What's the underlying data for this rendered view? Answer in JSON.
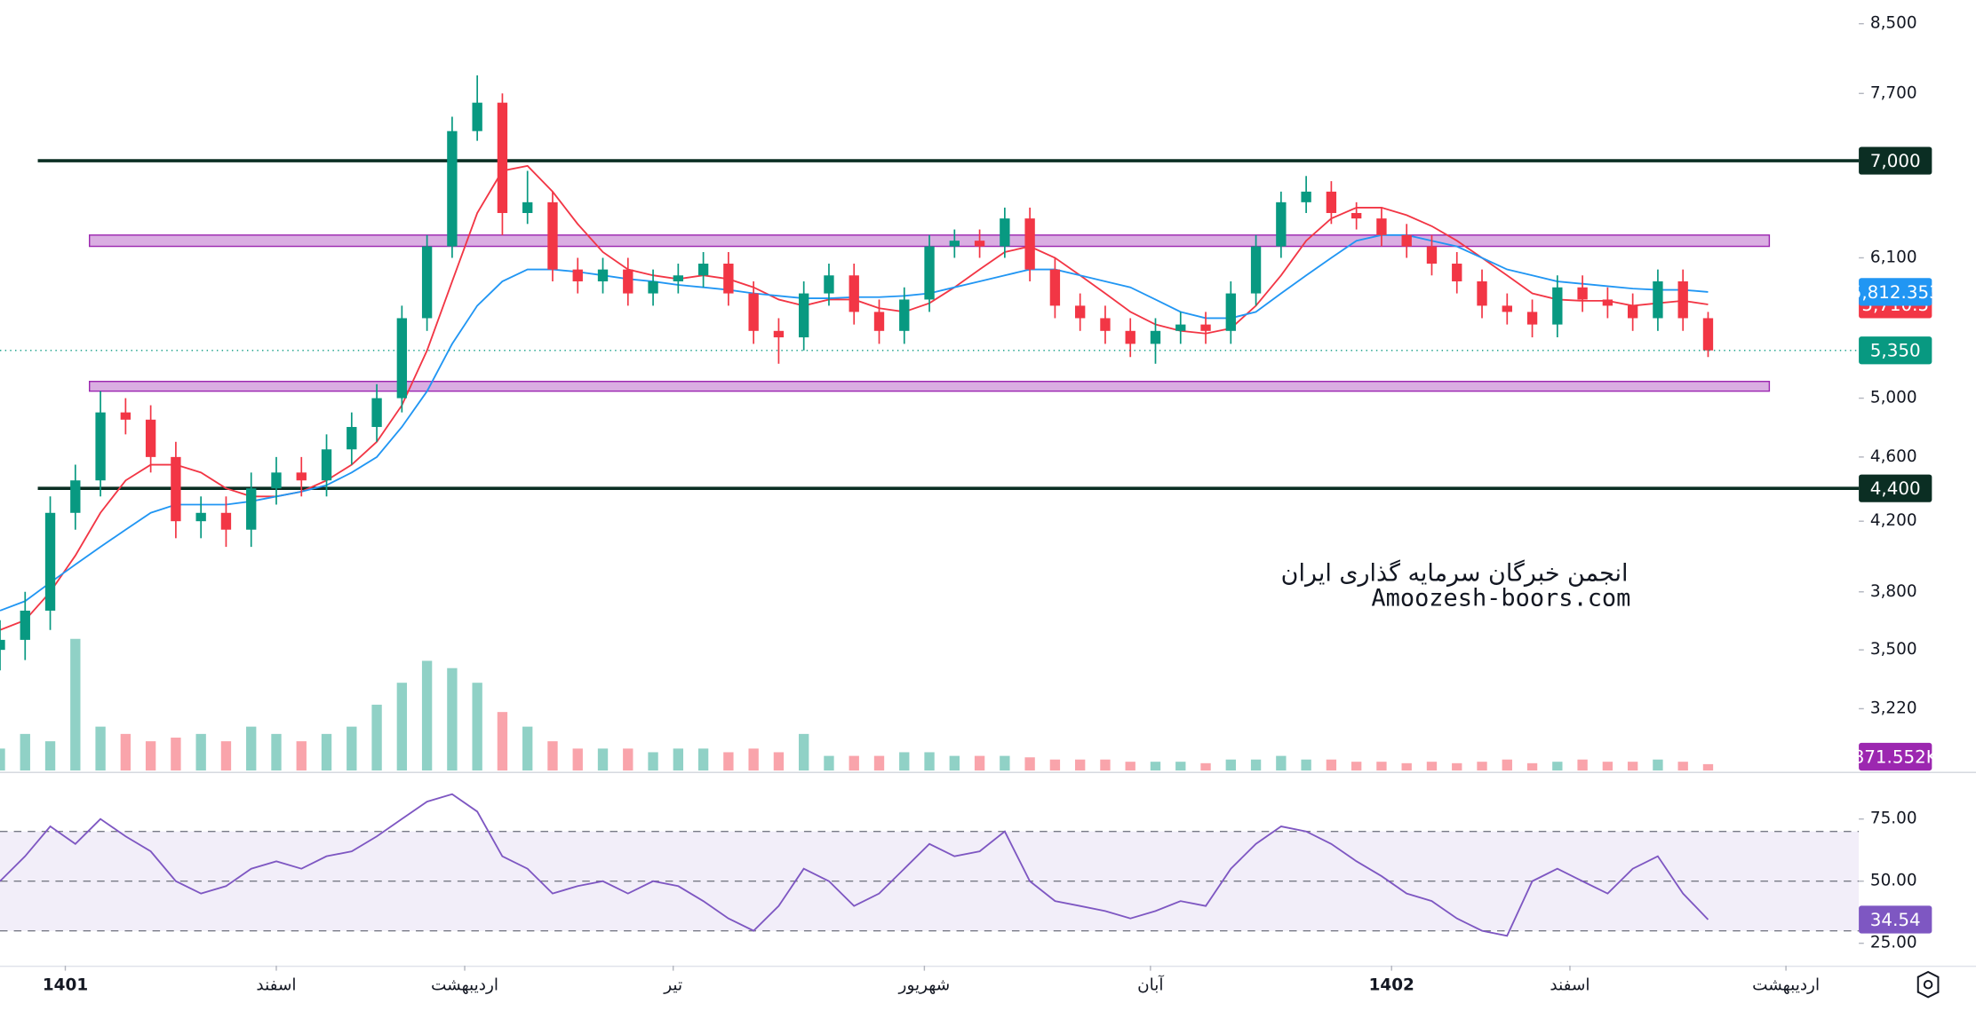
{
  "chart_data": {
    "type": "candlestick",
    "log_scale": true,
    "xlim": [
      0,
      74
    ],
    "ylim": [
      2950,
      8790
    ],
    "xticks": [
      {
        "value": 2.6,
        "label": "1401"
      },
      {
        "value": 11,
        "label": "اسفند"
      },
      {
        "value": 18.5,
        "label": "اردیبهشت"
      },
      {
        "value": 26.8,
        "label": "تیر"
      },
      {
        "value": 36.8,
        "label": "شهریور"
      },
      {
        "value": 45.8,
        "label": "آبان"
      },
      {
        "value": 55.4,
        "label": "1402"
      },
      {
        "value": 62.5,
        "label": "اسفند"
      },
      {
        "value": 71.1,
        "label": "اردیبهشت"
      }
    ],
    "yticks": [
      {
        "value": 8500,
        "label": "8,500"
      },
      {
        "value": 7700,
        "label": "7,700"
      },
      {
        "value": 6100,
        "label": "6,100"
      },
      {
        "value": 5000,
        "label": "5,000"
      },
      {
        "value": 4600,
        "label": "4,600"
      },
      {
        "value": 4200,
        "label": "4,200"
      },
      {
        "value": 3800,
        "label": "3,800"
      },
      {
        "value": 3500,
        "label": "3,500"
      },
      {
        "value": 3220,
        "label": "3,220"
      }
    ],
    "up_color": "#089981",
    "down_color": "#f23645",
    "open": [
      3500,
      3550,
      3700,
      4250,
      4450,
      4900,
      4850,
      4600,
      4200,
      4250,
      4150,
      4400,
      4500,
      4450,
      4650,
      4800,
      5000,
      5600,
      6200,
      7300,
      7600,
      6500,
      6600,
      6000,
      5900,
      6000,
      5800,
      5900,
      5950,
      6050,
      5800,
      5500,
      5450,
      5800,
      5950,
      5650,
      5500,
      5750,
      6200,
      6250,
      6200,
      6450,
      6000,
      5700,
      5600,
      5500,
      5400,
      5500,
      5550,
      5500,
      5800,
      6200,
      6600,
      6700,
      6500,
      6450,
      6300,
      6200,
      6050,
      5900,
      5700,
      5650,
      5550,
      5850,
      5750,
      5700,
      5600,
      5900,
      5600
    ],
    "high": [
      3650,
      3800,
      4350,
      4550,
      5050,
      5000,
      4950,
      4700,
      4350,
      4350,
      4500,
      4600,
      4600,
      4750,
      4900,
      5100,
      5700,
      6300,
      7450,
      7900,
      7700,
      6900,
      6700,
      6100,
      6100,
      6100,
      6000,
      6050,
      6150,
      6150,
      5900,
      5600,
      5900,
      6050,
      6050,
      5750,
      5850,
      6300,
      6350,
      6350,
      6550,
      6550,
      6100,
      5800,
      5700,
      5600,
      5600,
      5650,
      5650,
      5900,
      6300,
      6700,
      6850,
      6800,
      6600,
      6550,
      6400,
      6300,
      6150,
      6000,
      5800,
      5750,
      5950,
      5950,
      5850,
      5800,
      6000,
      6000,
      5650
    ],
    "low": [
      3400,
      3450,
      3600,
      4150,
      4350,
      4750,
      4500,
      4100,
      4100,
      4050,
      4050,
      4300,
      4350,
      4350,
      4550,
      4700,
      4900,
      5500,
      6100,
      7200,
      6300,
      6400,
      5900,
      5800,
      5800,
      5700,
      5700,
      5800,
      5850,
      5700,
      5400,
      5250,
      5350,
      5700,
      5550,
      5400,
      5400,
      5650,
      6100,
      6100,
      6100,
      5900,
      5600,
      5500,
      5400,
      5300,
      5250,
      5400,
      5400,
      5400,
      5700,
      6100,
      6500,
      6400,
      6350,
      6200,
      6100,
      5950,
      5800,
      5600,
      5550,
      5450,
      5450,
      5650,
      5600,
      5500,
      5500,
      5500,
      5300
    ],
    "close": [
      3550,
      3700,
      4250,
      4450,
      4900,
      4850,
      4600,
      4200,
      4250,
      4150,
      4400,
      4500,
      4450,
      4650,
      4800,
      5000,
      5600,
      6200,
      7300,
      7600,
      6500,
      6600,
      6000,
      5900,
      6000,
      5800,
      5900,
      5950,
      6050,
      5800,
      5500,
      5450,
      5800,
      5950,
      5650,
      5500,
      5750,
      6200,
      6250,
      6200,
      6450,
      6000,
      5700,
      5600,
      5500,
      5400,
      5500,
      5550,
      5500,
      5800,
      6200,
      6600,
      6700,
      6500,
      6450,
      6300,
      6200,
      6050,
      5900,
      5700,
      5650,
      5550,
      5850,
      5750,
      5700,
      5600,
      5900,
      5600,
      5350
    ],
    "last_price_label": "5,350",
    "moving_averages": [
      {
        "color": "#f23645",
        "last_label": "5,710.5",
        "values": [
          3600,
          3650,
          3800,
          4000,
          4250,
          4450,
          4550,
          4550,
          4500,
          4400,
          4350,
          4350,
          4380,
          4450,
          4550,
          4700,
          4950,
          5350,
          5900,
          6500,
          6900,
          6950,
          6700,
          6400,
          6150,
          6000,
          5950,
          5920,
          5950,
          5920,
          5850,
          5750,
          5700,
          5750,
          5750,
          5680,
          5650,
          5720,
          5850,
          6000,
          6150,
          6200,
          6100,
          5950,
          5800,
          5650,
          5550,
          5500,
          5480,
          5520,
          5700,
          5950,
          6250,
          6450,
          6550,
          6550,
          6480,
          6380,
          6250,
          6100,
          5950,
          5800,
          5750,
          5740,
          5740,
          5700,
          5720,
          5740,
          5710.5
        ]
      },
      {
        "color": "#2196f3",
        "last_label": "5,812.353",
        "values": [
          3700,
          3750,
          3850,
          3950,
          4050,
          4150,
          4250,
          4300,
          4300,
          4300,
          4320,
          4350,
          4380,
          4420,
          4500,
          4600,
          4800,
          5050,
          5400,
          5700,
          5900,
          6000,
          6000,
          5980,
          5950,
          5920,
          5900,
          5870,
          5850,
          5830,
          5800,
          5780,
          5760,
          5760,
          5770,
          5770,
          5780,
          5800,
          5850,
          5900,
          5950,
          6000,
          6000,
          5950,
          5900,
          5850,
          5750,
          5650,
          5600,
          5600,
          5650,
          5800,
          5950,
          6100,
          6250,
          6300,
          6300,
          6250,
          6200,
          6100,
          6000,
          5950,
          5900,
          5880,
          5860,
          5840,
          5830,
          5830,
          5812.353
        ]
      }
    ],
    "levels": [
      {
        "value": 7000,
        "label": "7,000",
        "color": "#0b2e23"
      },
      {
        "value": 4400,
        "label": "4,400",
        "color": "#0b2e23"
      }
    ],
    "zones": [
      {
        "from": 6200,
        "to": 6300,
        "color": "#ce93d8"
      },
      {
        "from": 5050,
        "to": 5120,
        "color": "#ce93d8"
      }
    ],
    "volume": {
      "color": "#9c27b0",
      "last_label": "871.552K",
      "vlim": [
        0,
        21000000
      ],
      "values": [
        3000000,
        5000000,
        4000000,
        18000000,
        6000000,
        5000000,
        4000000,
        4500000,
        5000000,
        4000000,
        6000000,
        5000000,
        4000000,
        5000000,
        6000000,
        9000000,
        12000000,
        15000000,
        14000000,
        12000000,
        8000000,
        6000000,
        4000000,
        3000000,
        3000000,
        3000000,
        2500000,
        3000000,
        3000000,
        2500000,
        3000000,
        2500000,
        5000000,
        2000000,
        2000000,
        2000000,
        2500000,
        2500000,
        2000000,
        2000000,
        2000000,
        1800000,
        1500000,
        1500000,
        1500000,
        1200000,
        1200000,
        1200000,
        1000000,
        1500000,
        1500000,
        2000000,
        1500000,
        1500000,
        1200000,
        1200000,
        1000000,
        1200000,
        1000000,
        1200000,
        1500000,
        1000000,
        1200000,
        1500000,
        1200000,
        1200000,
        1500000,
        1200000,
        871552
      ]
    },
    "rsi": {
      "color": "#7e57c2",
      "last_label": "34.54",
      "ylim": [
        17,
        93
      ],
      "yticks": [
        {
          "value": 75,
          "label": "75.00"
        },
        {
          "value": 50,
          "label": "50.00"
        },
        {
          "value": 25,
          "label": "25.00"
        }
      ],
      "levels": [
        30,
        50,
        70
      ],
      "values": [
        50,
        60,
        72,
        65,
        75,
        68,
        62,
        50,
        45,
        48,
        55,
        58,
        55,
        60,
        62,
        68,
        75,
        82,
        85,
        78,
        60,
        55,
        45,
        48,
        50,
        45,
        50,
        48,
        42,
        35,
        30,
        40,
        55,
        50,
        40,
        45,
        55,
        65,
        60,
        62,
        70,
        50,
        42,
        40,
        38,
        35,
        38,
        42,
        40,
        55,
        65,
        72,
        70,
        65,
        58,
        52,
        45,
        42,
        35,
        30,
        28,
        50,
        55,
        50,
        45,
        55,
        60,
        45,
        34.54
      ]
    },
    "watermark": [
      "انجمن خبرگان سرمایه گذاری ایران",
      "Amoozesh-boors.com"
    ]
  }
}
